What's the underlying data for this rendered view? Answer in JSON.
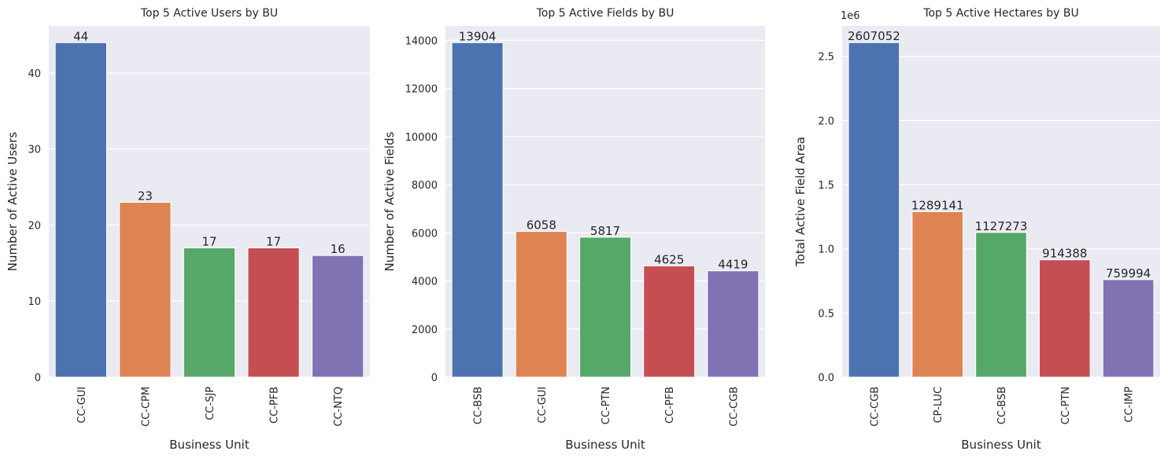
{
  "chart_data": [
    {
      "type": "bar",
      "title": "Top 5 Active Users by BU",
      "xlabel": "Business Unit",
      "ylabel": "Number of Active Users",
      "categories": [
        "CC-GUI",
        "CC-CPM",
        "CC-SJP",
        "CC-PFB",
        "CC-NTQ"
      ],
      "values": [
        44,
        23,
        17,
        17,
        16
      ],
      "data_labels": [
        "44",
        "23",
        "17",
        "17",
        "16"
      ],
      "colors": [
        "#4c72b0",
        "#dd8452",
        "#55a868",
        "#c44e52",
        "#8172b3"
      ],
      "ylim": [
        0,
        46.2
      ],
      "yticks": [
        0,
        10,
        20,
        30,
        40
      ],
      "ytick_labels": [
        "0",
        "10",
        "20",
        "30",
        "40"
      ],
      "grid": true,
      "background": "#eaeaf2"
    },
    {
      "type": "bar",
      "title": "Top 5 Active Fields by BU",
      "xlabel": "Business Unit",
      "ylabel": "Number of Active Fields",
      "categories": [
        "CC-BSB",
        "CC-GUI",
        "CC-PTN",
        "CC-PFB",
        "CC-CGB"
      ],
      "values": [
        13904,
        6058,
        5817,
        4625,
        4419
      ],
      "data_labels": [
        "13904",
        "6058",
        "5817",
        "4625",
        "4419"
      ],
      "colors": [
        "#4c72b0",
        "#dd8452",
        "#55a868",
        "#c44e52",
        "#8172b3"
      ],
      "ylim": [
        0,
        14600
      ],
      "yticks": [
        0,
        2000,
        4000,
        6000,
        8000,
        10000,
        12000,
        14000
      ],
      "ytick_labels": [
        "0",
        "2000",
        "4000",
        "6000",
        "8000",
        "10000",
        "12000",
        "14000"
      ],
      "grid": true,
      "background": "#eaeaf2"
    },
    {
      "type": "bar",
      "title": "Top 5 Active Hectares by BU",
      "xlabel": "Business Unit",
      "ylabel": "Total Active Field Area",
      "offset_text": "1e6",
      "categories": [
        "CC-CGB",
        "CP-LUC",
        "CC-BSB",
        "CC-PTN",
        "CC-IMP"
      ],
      "values": [
        2607052,
        1289141,
        1127273,
        914388,
        759994
      ],
      "data_labels": [
        "2607052",
        "1289141",
        "1127273",
        "914388",
        "759994"
      ],
      "colors": [
        "#4c72b0",
        "#dd8452",
        "#55a868",
        "#c44e52",
        "#8172b3"
      ],
      "ylim": [
        0,
        2737000
      ],
      "yticks": [
        0,
        500000,
        1000000,
        1500000,
        2000000,
        2500000
      ],
      "ytick_labels": [
        "0.0",
        "0.5",
        "1.0",
        "1.5",
        "2.0",
        "2.5"
      ],
      "grid": true,
      "background": "#eaeaf2"
    }
  ]
}
